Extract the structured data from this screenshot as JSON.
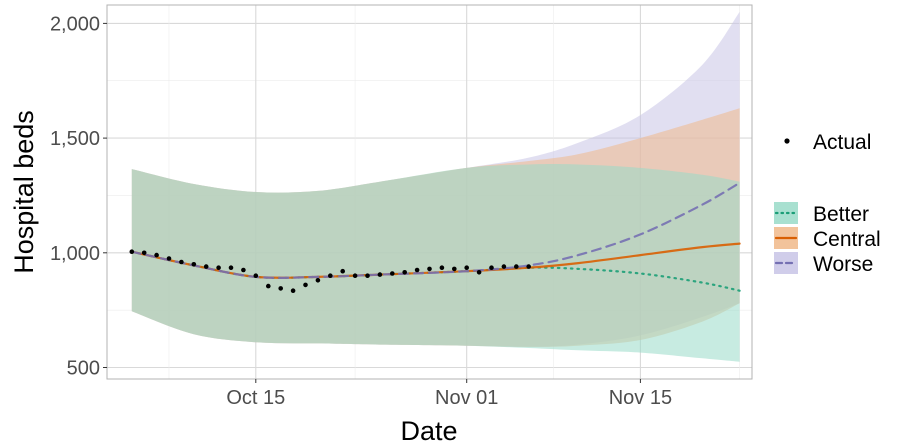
{
  "chart_data": {
    "type": "line",
    "xlabel": "Date",
    "ylabel": "Hospital beds",
    "x_range": [
      "2020-10-03",
      "2020-11-24"
    ],
    "ylim": [
      450,
      2080
    ],
    "x_ticks": [
      {
        "date": "2020-10-15",
        "label": "Oct 15"
      },
      {
        "date": "2020-11-01",
        "label": "Nov 01"
      },
      {
        "date": "2020-11-15",
        "label": "Nov 15"
      }
    ],
    "x_minor_ticks": [
      "2020-10-08",
      "2020-10-23",
      "2020-11-08",
      "2020-11-23"
    ],
    "y_ticks": [
      {
        "value": 500,
        "label": "500"
      },
      {
        "value": 1000,
        "label": "1,000"
      },
      {
        "value": 1500,
        "label": "1,500"
      },
      {
        "value": 2000,
        "label": "2,000"
      }
    ],
    "grid": true,
    "legend_position": "right",
    "actual": {
      "label": "Actual",
      "color": "#000000",
      "points": [
        {
          "x": "2020-10-05",
          "y": 1005
        },
        {
          "x": "2020-10-06",
          "y": 1000
        },
        {
          "x": "2020-10-07",
          "y": 990
        },
        {
          "x": "2020-10-08",
          "y": 975
        },
        {
          "x": "2020-10-09",
          "y": 960
        },
        {
          "x": "2020-10-10",
          "y": 950
        },
        {
          "x": "2020-10-11",
          "y": 940
        },
        {
          "x": "2020-10-12",
          "y": 935
        },
        {
          "x": "2020-10-13",
          "y": 935
        },
        {
          "x": "2020-10-14",
          "y": 925
        },
        {
          "x": "2020-10-15",
          "y": 900
        },
        {
          "x": "2020-10-16",
          "y": 855
        },
        {
          "x": "2020-10-17",
          "y": 845
        },
        {
          "x": "2020-10-18",
          "y": 835
        },
        {
          "x": "2020-10-19",
          "y": 860
        },
        {
          "x": "2020-10-20",
          "y": 880
        },
        {
          "x": "2020-10-21",
          "y": 900
        },
        {
          "x": "2020-10-22",
          "y": 920
        },
        {
          "x": "2020-10-23",
          "y": 900
        },
        {
          "x": "2020-10-24",
          "y": 900
        },
        {
          "x": "2020-10-25",
          "y": 905
        },
        {
          "x": "2020-10-26",
          "y": 910
        },
        {
          "x": "2020-10-27",
          "y": 915
        },
        {
          "x": "2020-10-28",
          "y": 925
        },
        {
          "x": "2020-10-29",
          "y": 930
        },
        {
          "x": "2020-10-30",
          "y": 935
        },
        {
          "x": "2020-10-31",
          "y": 930
        },
        {
          "x": "2020-11-01",
          "y": 935
        },
        {
          "x": "2020-11-02",
          "y": 915
        },
        {
          "x": "2020-11-03",
          "y": 935
        },
        {
          "x": "2020-11-04",
          "y": 940
        },
        {
          "x": "2020-11-05",
          "y": 940
        },
        {
          "x": "2020-11-06",
          "y": 940
        }
      ]
    },
    "series": [
      {
        "name": "Better",
        "color": "#1b9e77",
        "fill": "#99dbc8",
        "line_style": "dotted",
        "x": [
          "2020-10-05",
          "2020-10-10",
          "2020-10-15",
          "2020-10-20",
          "2020-10-25",
          "2020-11-01",
          "2020-11-06",
          "2020-11-10",
          "2020-11-15",
          "2020-11-20",
          "2020-11-23"
        ],
        "values": [
          1005,
          945,
          895,
          895,
          905,
          920,
          935,
          930,
          910,
          870,
          835
        ],
        "lower": [
          745,
          645,
          610,
          605,
          600,
          595,
          585,
          575,
          565,
          540,
          525
        ],
        "upper": [
          1365,
          1300,
          1265,
          1270,
          1310,
          1370,
          1385,
          1385,
          1370,
          1340,
          1310
        ]
      },
      {
        "name": "Central",
        "color": "#d95f02",
        "fill": "#f0b88a",
        "line_style": "solid",
        "x": [
          "2020-10-05",
          "2020-10-10",
          "2020-10-15",
          "2020-10-20",
          "2020-10-25",
          "2020-11-01",
          "2020-11-06",
          "2020-11-10",
          "2020-11-15",
          "2020-11-20",
          "2020-11-23"
        ],
        "values": [
          1005,
          945,
          895,
          895,
          905,
          920,
          935,
          955,
          990,
          1025,
          1040
        ],
        "lower": [
          745,
          645,
          610,
          605,
          600,
          595,
          590,
          595,
          620,
          700,
          780
        ],
        "upper": [
          1365,
          1300,
          1265,
          1270,
          1310,
          1370,
          1400,
          1430,
          1500,
          1580,
          1630
        ]
      },
      {
        "name": "Worse",
        "color": "#7570b3",
        "fill": "#c8c4e6",
        "line_style": "dashed",
        "x": [
          "2020-10-05",
          "2020-10-10",
          "2020-10-15",
          "2020-10-20",
          "2020-10-25",
          "2020-11-01",
          "2020-11-06",
          "2020-11-10",
          "2020-11-15",
          "2020-11-20",
          "2020-11-23"
        ],
        "values": [
          1005,
          945,
          895,
          895,
          905,
          920,
          945,
          990,
          1080,
          1210,
          1305
        ],
        "lower": [
          745,
          645,
          610,
          605,
          600,
          595,
          590,
          600,
          640,
          720,
          780
        ],
        "upper": [
          1365,
          1300,
          1265,
          1270,
          1310,
          1370,
          1415,
          1480,
          1600,
          1820,
          2050
        ]
      }
    ]
  }
}
